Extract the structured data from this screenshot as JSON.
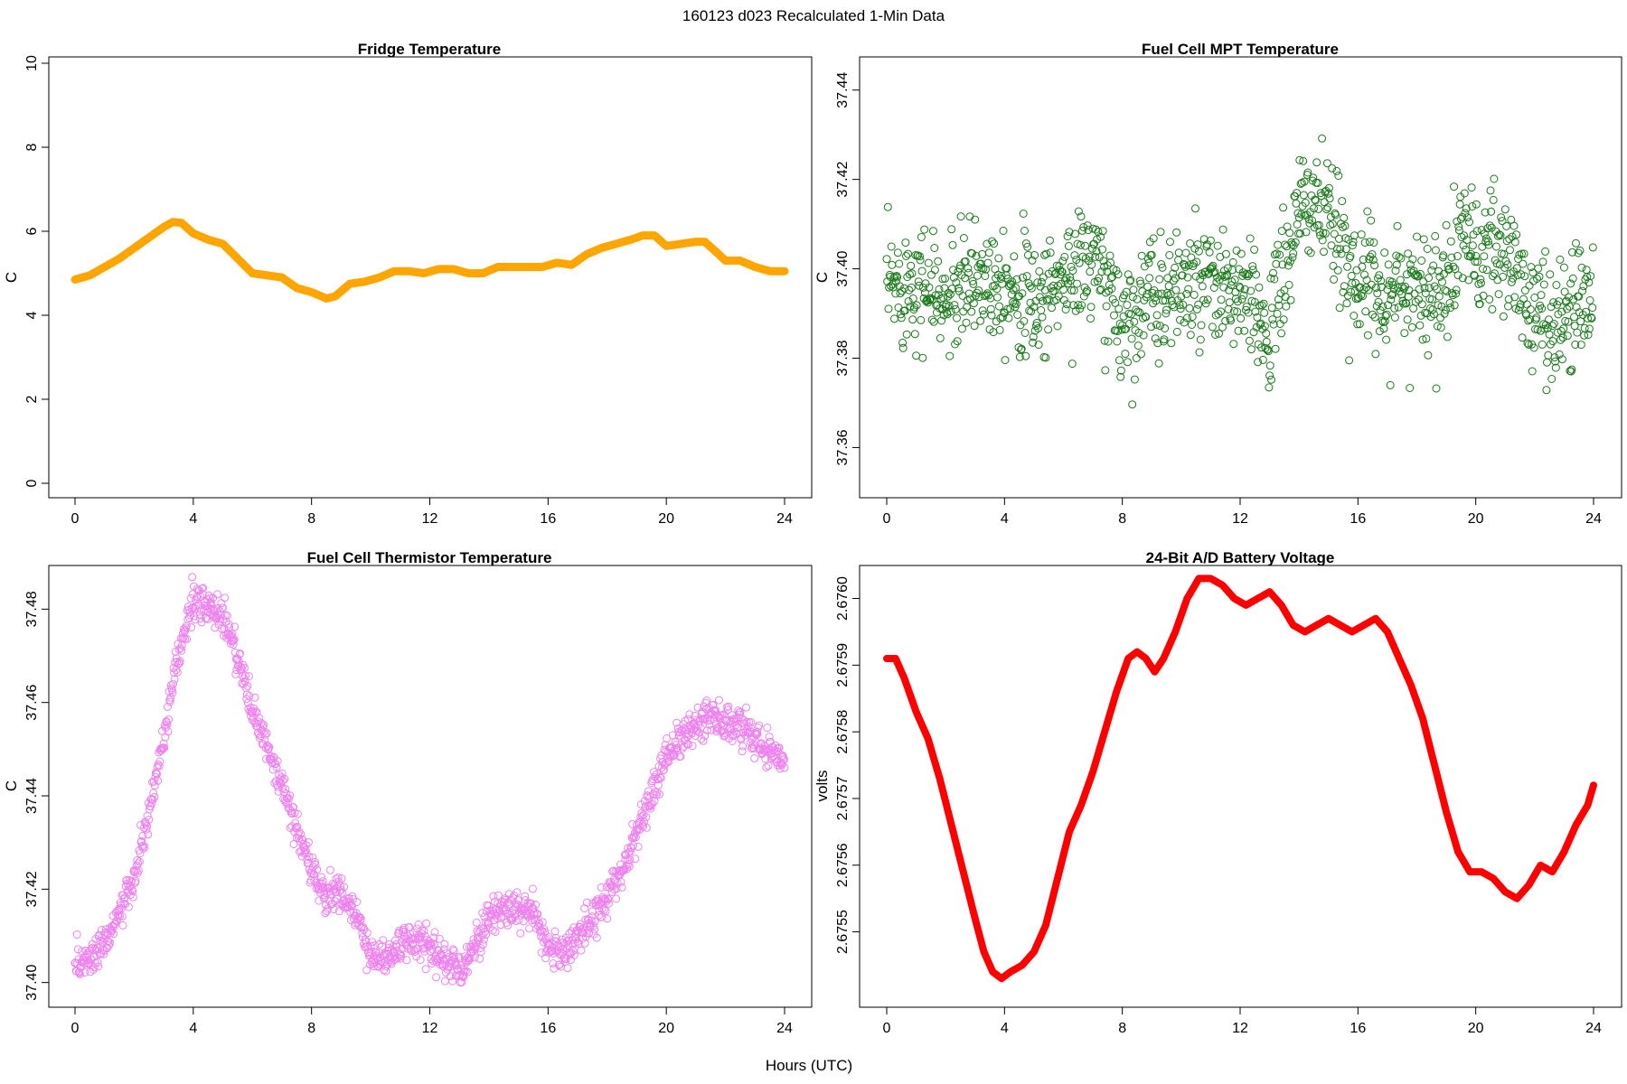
{
  "figure": {
    "title": "160123   d023   Recalculated 1-Min Data",
    "xlabel": "Hours (UTC)"
  },
  "chart_data": [
    {
      "type": "line",
      "title": "Fridge Temperature",
      "ylabel": "C",
      "xlim": [
        0,
        24
      ],
      "ylim": [
        0,
        10
      ],
      "xticks": [
        0,
        4,
        8,
        12,
        16,
        20,
        24
      ],
      "yticks": [
        0,
        2,
        4,
        6,
        8,
        10
      ],
      "color": "#FFA500",
      "x": [
        0,
        0.5,
        1,
        1.5,
        2,
        2.5,
        3,
        3.3,
        3.6,
        4,
        4.5,
        5,
        5.5,
        6,
        6.5,
        7,
        7.5,
        8,
        8.5,
        8.8,
        9.3,
        9.8,
        10.3,
        10.8,
        11.3,
        11.8,
        12.3,
        12.8,
        13.3,
        13.8,
        14.3,
        14.8,
        15.3,
        15.8,
        16.3,
        16.8,
        17.3,
        17.8,
        18.3,
        18.8,
        19.2,
        19.6,
        20,
        20.5,
        21,
        21.3,
        21.7,
        22,
        22.5,
        23,
        23.5,
        24
      ],
      "y": [
        4.85,
        4.95,
        5.15,
        5.35,
        5.6,
        5.85,
        6.1,
        6.22,
        6.2,
        5.95,
        5.8,
        5.7,
        5.35,
        5.0,
        4.95,
        4.9,
        4.65,
        4.55,
        4.4,
        4.45,
        4.75,
        4.8,
        4.9,
        5.05,
        5.05,
        5.0,
        5.1,
        5.1,
        5.0,
        5.0,
        5.15,
        5.15,
        5.15,
        5.15,
        5.25,
        5.2,
        5.45,
        5.6,
        5.7,
        5.8,
        5.9,
        5.9,
        5.65,
        5.7,
        5.75,
        5.75,
        5.5,
        5.3,
        5.3,
        5.15,
        5.05,
        5.05
      ]
    },
    {
      "type": "scatter",
      "title": "Fuel Cell MPT Temperature",
      "ylabel": "C",
      "xlim": [
        0,
        24
      ],
      "ylim": [
        37.352,
        37.446
      ],
      "xticks": [
        0,
        4,
        8,
        12,
        16,
        20,
        24
      ],
      "yticks": [
        37.36,
        37.38,
        37.4,
        37.42,
        37.44
      ],
      "ytick_labels": [
        "37.36",
        "37.38",
        "37.40",
        "37.42",
        "37.44"
      ],
      "color": "#1a7a1a",
      "x": [
        0,
        1,
        2,
        3,
        4,
        5,
        6,
        7,
        8,
        9,
        10,
        11,
        12,
        13,
        14,
        14.5,
        15,
        16,
        17,
        18,
        19,
        19.5,
        20,
        21,
        22,
        23,
        24
      ],
      "y": [
        37.395,
        37.398,
        37.392,
        37.398,
        37.398,
        37.392,
        37.398,
        37.402,
        37.388,
        37.394,
        37.396,
        37.395,
        37.394,
        37.386,
        37.412,
        37.416,
        37.41,
        37.398,
        37.394,
        37.397,
        37.393,
        37.41,
        37.402,
        37.404,
        37.39,
        37.388,
        37.398
      ],
      "spread": 0.006
    },
    {
      "type": "scatter",
      "title": "Fuel Cell Thermistor Temperature",
      "ylabel": "C",
      "xlim": [
        0,
        24
      ],
      "ylim": [
        37.398,
        37.488
      ],
      "xticks": [
        0,
        4,
        8,
        12,
        16,
        20,
        24
      ],
      "yticks": [
        37.4,
        37.42,
        37.44,
        37.46,
        37.48
      ],
      "ytick_labels": [
        "37.40",
        "37.42",
        "37.44",
        "37.46",
        "37.48"
      ],
      "color": "#EE82EE",
      "x": [
        0,
        0.5,
        1,
        1.5,
        2,
        2.5,
        3,
        3.5,
        4,
        4.5,
        5,
        5.5,
        6,
        6.5,
        7,
        7.5,
        8,
        8.5,
        9,
        9.5,
        10,
        10.5,
        11,
        11.5,
        12,
        12.5,
        13,
        13.5,
        14,
        14.5,
        15,
        15.5,
        16,
        16.5,
        17,
        17.5,
        18,
        18.5,
        19,
        19.5,
        20,
        20.5,
        21,
        21.5,
        22,
        22.5,
        23,
        23.5,
        24
      ],
      "y": [
        37.404,
        37.405,
        37.409,
        37.415,
        37.422,
        37.436,
        37.452,
        37.47,
        37.482,
        37.48,
        37.479,
        37.47,
        37.458,
        37.45,
        37.442,
        37.433,
        37.424,
        37.418,
        37.42,
        37.414,
        37.406,
        37.405,
        37.408,
        37.409,
        37.408,
        37.405,
        37.402,
        37.408,
        37.414,
        37.416,
        37.416,
        37.414,
        37.408,
        37.406,
        37.41,
        37.414,
        37.418,
        37.424,
        37.432,
        37.44,
        37.449,
        37.452,
        37.455,
        37.458,
        37.455,
        37.455,
        37.452,
        37.45,
        37.448
      ],
      "spread": 0.0035
    },
    {
      "type": "line",
      "title": "24-Bit A/D Battery Voltage",
      "ylabel": "volts",
      "xlim": [
        0,
        24
      ],
      "ylim": [
        2.67541,
        2.67604
      ],
      "xticks": [
        0,
        4,
        8,
        12,
        16,
        20,
        24
      ],
      "yticks": [
        2.6755,
        2.6756,
        2.6757,
        2.6758,
        2.6759,
        2.676
      ],
      "ytick_labels": [
        "2.6755",
        "2.6756",
        "2.6757",
        "2.6758",
        "2.6759",
        "2.6760"
      ],
      "color": "#FF0000",
      "x": [
        0,
        0.3,
        0.6,
        1,
        1.4,
        1.8,
        2.2,
        2.6,
        3,
        3.3,
        3.6,
        3.9,
        4.2,
        4.6,
        5,
        5.4,
        5.8,
        6.2,
        6.6,
        7,
        7.4,
        7.8,
        8.2,
        8.5,
        8.8,
        9.1,
        9.4,
        9.8,
        10.2,
        10.6,
        11,
        11.4,
        11.8,
        12.2,
        12.6,
        13,
        13.4,
        13.8,
        14.2,
        14.6,
        15,
        15.4,
        15.8,
        16.2,
        16.6,
        17,
        17.4,
        17.8,
        18.2,
        18.6,
        19,
        19.4,
        19.8,
        20.2,
        20.6,
        21,
        21.4,
        21.8,
        22.2,
        22.6,
        23,
        23.4,
        23.8,
        24
      ],
      "y": [
        2.67591,
        2.67591,
        2.67588,
        2.67583,
        2.67579,
        2.67573,
        2.67566,
        2.67559,
        2.67552,
        2.67547,
        2.67544,
        2.67543,
        2.67544,
        2.67545,
        2.67547,
        2.67551,
        2.67558,
        2.67565,
        2.67569,
        2.67574,
        2.6758,
        2.67586,
        2.67591,
        2.67592,
        2.67591,
        2.67589,
        2.67591,
        2.67595,
        2.676,
        2.67603,
        2.67603,
        2.67602,
        2.676,
        2.67599,
        2.676,
        2.67601,
        2.67599,
        2.67596,
        2.67595,
        2.67596,
        2.67597,
        2.67596,
        2.67595,
        2.67596,
        2.67597,
        2.67595,
        2.67591,
        2.67587,
        2.67582,
        2.67575,
        2.67568,
        2.67562,
        2.67559,
        2.67559,
        2.67558,
        2.67556,
        2.67555,
        2.67557,
        2.6756,
        2.67559,
        2.67562,
        2.67566,
        2.67569,
        2.67572
      ]
    }
  ]
}
